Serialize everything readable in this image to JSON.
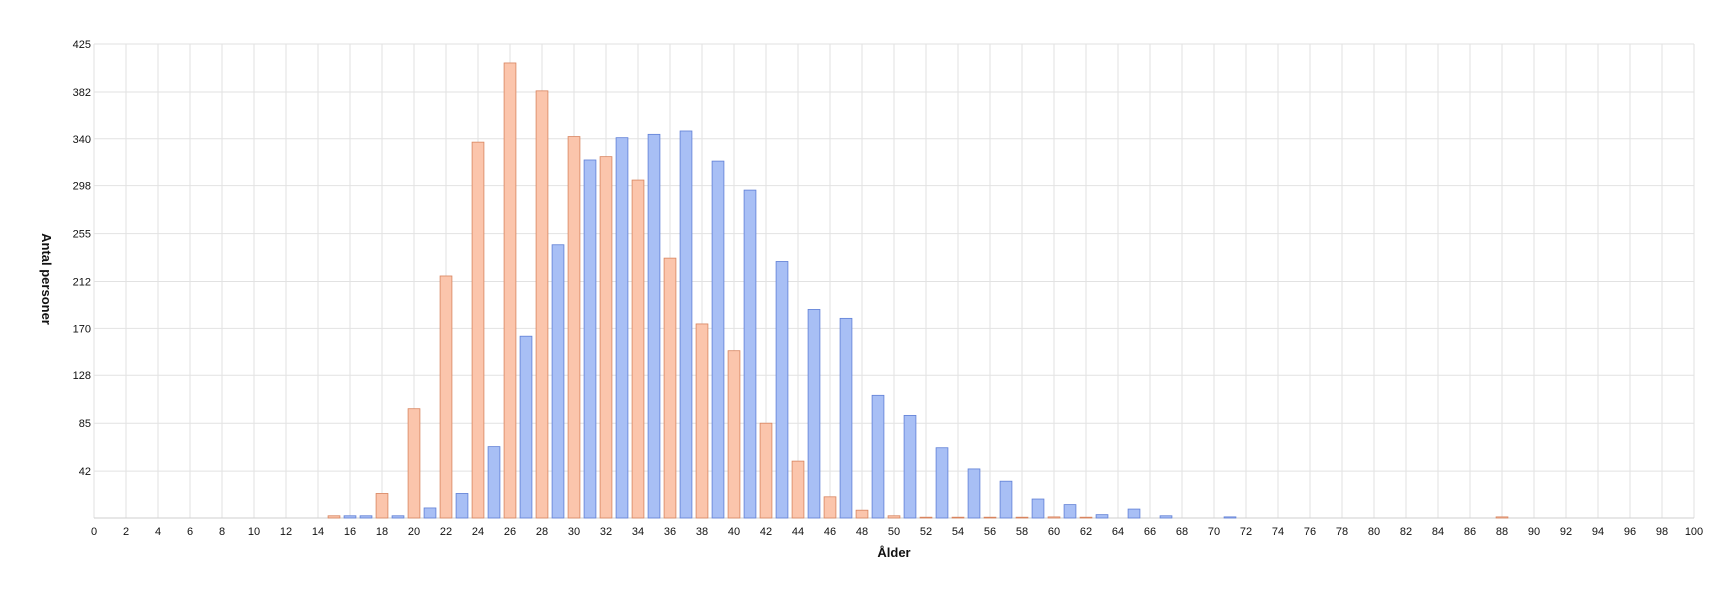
{
  "chart_data": {
    "type": "bar",
    "title": "",
    "xlabel": "Ålder",
    "ylabel": "Antal personer",
    "xlim": [
      0,
      100
    ],
    "ylim": [
      0,
      425
    ],
    "x_ticks": [
      0,
      2,
      4,
      6,
      8,
      10,
      12,
      14,
      16,
      18,
      20,
      22,
      24,
      26,
      28,
      30,
      32,
      34,
      36,
      38,
      40,
      42,
      44,
      46,
      48,
      50,
      52,
      54,
      56,
      58,
      60,
      62,
      64,
      66,
      68,
      70,
      72,
      74,
      76,
      78,
      80,
      82,
      84,
      86,
      88,
      90,
      92,
      94,
      96,
      98,
      100
    ],
    "y_ticks": [
      42,
      85,
      128,
      170,
      212,
      255,
      298,
      340,
      382,
      425
    ],
    "grid": true,
    "legend": "none",
    "series": [
      {
        "color": "#a8bff5",
        "stroke": "#5f7fd6",
        "x": [
          16,
          17,
          19,
          21,
          23,
          25,
          27,
          29,
          31,
          33,
          35,
          37,
          39,
          41,
          43,
          45,
          47,
          49,
          51,
          53,
          55,
          57,
          59,
          61,
          63,
          65,
          67,
          71
        ],
        "values": [
          2,
          2,
          2,
          9,
          22,
          64,
          163,
          245,
          321,
          341,
          344,
          347,
          320,
          294,
          230,
          187,
          179,
          110,
          92,
          63,
          44,
          33,
          17,
          12,
          3,
          8,
          2,
          1
        ]
      },
      {
        "color": "#fbc5ac",
        "stroke": "#d8845f",
        "x": [
          15,
          18,
          20,
          22,
          24,
          26,
          28,
          30,
          32,
          34,
          36,
          38,
          40,
          42,
          44,
          46,
          48,
          50,
          52,
          54,
          56,
          58,
          60,
          62,
          88
        ],
        "values": [
          2,
          22,
          98,
          217,
          337,
          408,
          383,
          342,
          324,
          303,
          233,
          174,
          150,
          85,
          51,
          19,
          7,
          2,
          0,
          0,
          0,
          0,
          1,
          0,
          1
        ]
      }
    ]
  }
}
